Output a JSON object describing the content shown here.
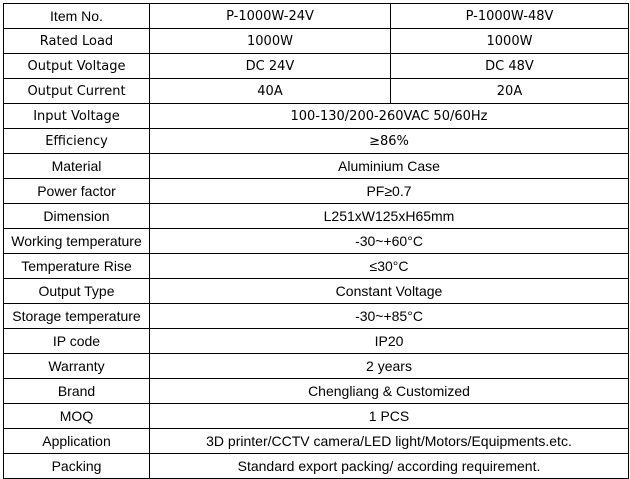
{
  "header": {
    "label": "Item No.",
    "models": [
      "P-1000W-24V",
      "P-1000W-48V"
    ]
  },
  "split_rows": [
    {
      "label": "Rated Load",
      "values": [
        "1000W",
        "1000W"
      ]
    },
    {
      "label": "Output Voltage",
      "values": [
        "DC 24V",
        "DC 48V"
      ]
    },
    {
      "label": "Output Current",
      "values": [
        "40A",
        "20A"
      ]
    }
  ],
  "rows": [
    {
      "label": "Input Voltage",
      "value": "100-130/200-260VAC 50/60Hz"
    },
    {
      "label": "Efficiency",
      "value": "≥86%"
    },
    {
      "label": "Material",
      "value": "Aluminium Case"
    },
    {
      "label": "Power factor",
      "value": "PF≥0.7"
    },
    {
      "label": "Dimension",
      "value": "L251xW125xH65mm"
    },
    {
      "label": "Working temperature",
      "value": "-30~+60°C"
    },
    {
      "label": "Temperature Rise",
      "value": "≤30°C"
    },
    {
      "label": "Output Type",
      "value": "Constant Voltage"
    },
    {
      "label": "Storage temperature",
      "value": "-30~+85°C"
    },
    {
      "label": "IP code",
      "value": "IP20"
    },
    {
      "label": "Warranty",
      "value": "2 years"
    },
    {
      "label": "Brand",
      "value": "Chengliang & Customized"
    },
    {
      "label": "MOQ",
      "value": "1 PCS"
    },
    {
      "label": "Application",
      "value": "3D printer/CCTV camera/LED light/Motors/Equipments.etc."
    },
    {
      "label": "Packing",
      "value": "Standard export packing/ according requirement."
    }
  ]
}
